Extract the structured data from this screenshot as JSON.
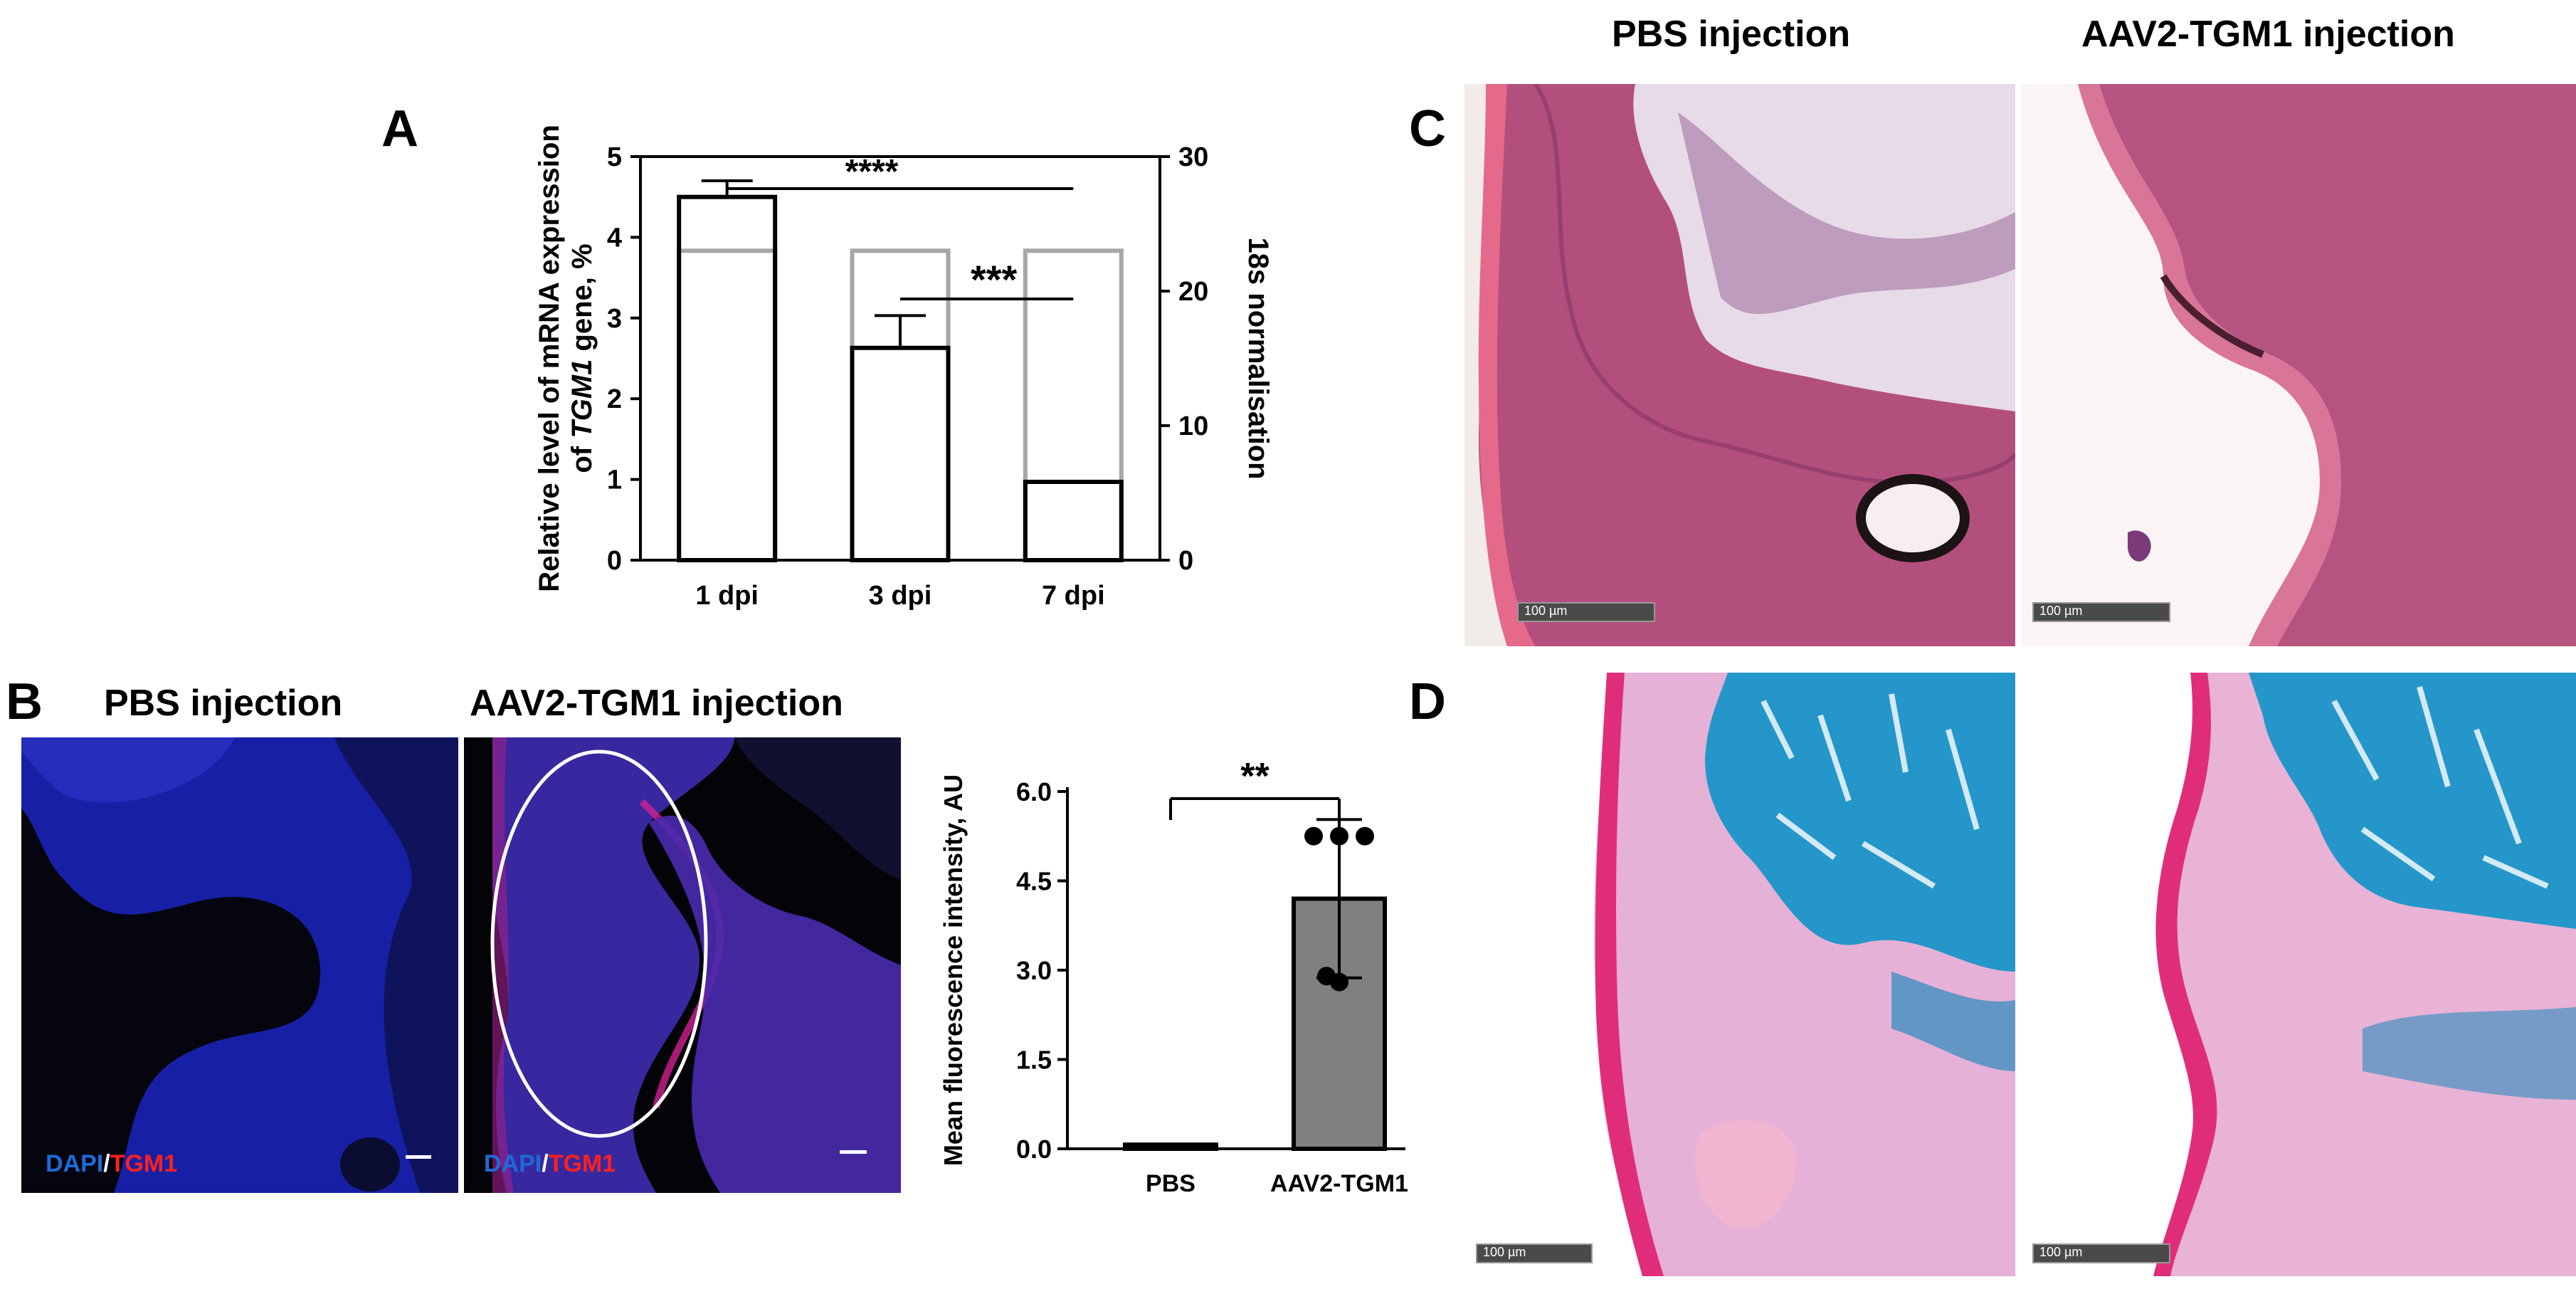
{
  "panels": {
    "A": {
      "letter": "A"
    },
    "B": {
      "letter": "B",
      "pbs_title": "PBS injection",
      "aav_title": "AAV2-TGM1 injection",
      "stain_dapi": "DAPI",
      "stain_sep": "/",
      "stain_tgm1": "TGM1"
    },
    "C": {
      "letter": "C",
      "pbs_title": "PBS injection",
      "aav_title": "AAV2-TGM1 injection",
      "scale_label": "100 µm"
    },
    "D": {
      "letter": "D",
      "scale_label": "100 µm"
    }
  },
  "chart_data": [
    {
      "type": "bar",
      "panel": "A",
      "categories": [
        "1 dpi",
        "3 dpi",
        "7 dpi"
      ],
      "ylabel_line1": "Relative level of mRNA expression",
      "ylabel_line2_prefix": "of ",
      "ylabel_line2_italic": "TGM1",
      "ylabel_line2_suffix": " gene, %",
      "y2label": "18s normalisation",
      "ylim": [
        0,
        5
      ],
      "y2lim": [
        0,
        30
      ],
      "yticks": [
        "0",
        "1",
        "2",
        "3",
        "4",
        "5"
      ],
      "y2ticks": [
        "0",
        "10",
        "20",
        "30"
      ],
      "series": [
        {
          "values": [
            4.5,
            2.63,
            0.97
          ],
          "errors": [
            0.2,
            0.4,
            0
          ],
          "color": "#000000"
        },
        {
          "values": [
            23,
            23,
            23
          ],
          "color": "#a6a6a6"
        }
      ],
      "significance": [
        {
          "label": "****",
          "from": "1 dpi",
          "to": "7 dpi"
        },
        {
          "label": "***",
          "from": "3 dpi",
          "to": "7 dpi"
        }
      ]
    },
    {
      "type": "bar",
      "panel": "B",
      "categories": [
        "PBS",
        "AAV2-TGM1"
      ],
      "ylabel": "Mean fluorescence intensity, AU",
      "ylim": [
        0,
        6
      ],
      "yticks": [
        "0.0",
        "1.5",
        "3.0",
        "4.5",
        "6.0"
      ],
      "values": [
        0.07,
        4.2
      ],
      "errors": [
        0.0,
        1.33
      ],
      "points": [
        [
          0.07,
          0.07,
          0.07,
          0.07,
          0.07
        ],
        [
          5.25,
          5.25,
          5.25,
          2.9,
          2.8
        ]
      ],
      "bar_colors": [
        "#ffffff",
        "#808080"
      ],
      "significance": {
        "label": "**",
        "from": "PBS",
        "to": "AAV2-TGM1"
      }
    }
  ]
}
